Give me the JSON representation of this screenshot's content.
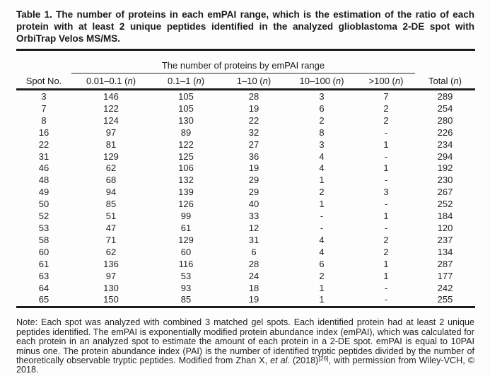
{
  "caption": "Table 1. The number of proteins in each emPAI range, which is the estimation of the ratio of each protein with at least 2 unique peptides identified in the analyzed glioblastoma 2-DE spot with OrbiTrap Velos MS/MS.",
  "table": {
    "header": {
      "spot_no": "Spot No.",
      "group": "The number of proteins by emPAI range",
      "total": "Total",
      "open_paren": " (",
      "n_symbol": "n",
      "close_paren": ")",
      "ranges": [
        "0.01–0.1",
        "0.1–1",
        "1–10",
        "10–100",
        ">100"
      ]
    },
    "rows": [
      {
        "spot": "3",
        "values": [
          "146",
          "105",
          "28",
          "3",
          "7"
        ],
        "total": "289"
      },
      {
        "spot": "7",
        "values": [
          "122",
          "105",
          "19",
          "6",
          "2"
        ],
        "total": "254"
      },
      {
        "spot": "8",
        "values": [
          "124",
          "130",
          "22",
          "2",
          "2"
        ],
        "total": "280"
      },
      {
        "spot": "16",
        "values": [
          "97",
          "89",
          "32",
          "8",
          "-"
        ],
        "total": "226"
      },
      {
        "spot": "22",
        "values": [
          "81",
          "122",
          "27",
          "3",
          "1"
        ],
        "total": "234"
      },
      {
        "spot": "31",
        "values": [
          "129",
          "125",
          "36",
          "4",
          "-"
        ],
        "total": "294"
      },
      {
        "spot": "46",
        "values": [
          "62",
          "106",
          "19",
          "4",
          "1"
        ],
        "total": "192"
      },
      {
        "spot": "48",
        "values": [
          "68",
          "132",
          "29",
          "1",
          "-"
        ],
        "total": "230"
      },
      {
        "spot": "49",
        "values": [
          "94",
          "139",
          "29",
          "2",
          "3"
        ],
        "total": "267"
      },
      {
        "spot": "50",
        "values": [
          "85",
          "126",
          "40",
          "1",
          "-"
        ],
        "total": "252"
      },
      {
        "spot": "52",
        "values": [
          "51",
          "99",
          "33",
          "-",
          "1"
        ],
        "total": "184"
      },
      {
        "spot": "53",
        "values": [
          "47",
          "61",
          "12",
          "-",
          "-"
        ],
        "total": "120"
      },
      {
        "spot": "58",
        "values": [
          "71",
          "129",
          "31",
          "4",
          "2"
        ],
        "total": "237"
      },
      {
        "spot": "60",
        "values": [
          "62",
          "60",
          "6",
          "4",
          "2"
        ],
        "total": "134"
      },
      {
        "spot": "61",
        "values": [
          "136",
          "116",
          "28",
          "6",
          "1"
        ],
        "total": "287"
      },
      {
        "spot": "63",
        "values": [
          "97",
          "53",
          "24",
          "2",
          "1"
        ],
        "total": "177"
      },
      {
        "spot": "64",
        "values": [
          "130",
          "93",
          "18",
          "1",
          "-"
        ],
        "total": "242"
      },
      {
        "spot": "65",
        "values": [
          "150",
          "85",
          "19",
          "1",
          "-"
        ],
        "total": "255"
      }
    ]
  },
  "note": {
    "part1": "Note: Each spot was analyzed with combined 3 matched gel spots. Each identified protein had at least 2 unique peptides identified. The emPAI is exponentially modified protein abundance index (emPAI), which was calculated for each protein in an analyzed spot to estimate the amount of each protein in a 2-DE spot. emPAI is equal to 10PAI minus one. The protein abundance index (PAI) is the number of identified tryptic peptides divided by the number of theoretically observable tryptic peptides. Modified from Zhan X, ",
    "etal": "et al.",
    "part2": " (2018)",
    "ref": "[26]",
    "part3": ", with permission from Wiley-VCH, © 2018."
  }
}
